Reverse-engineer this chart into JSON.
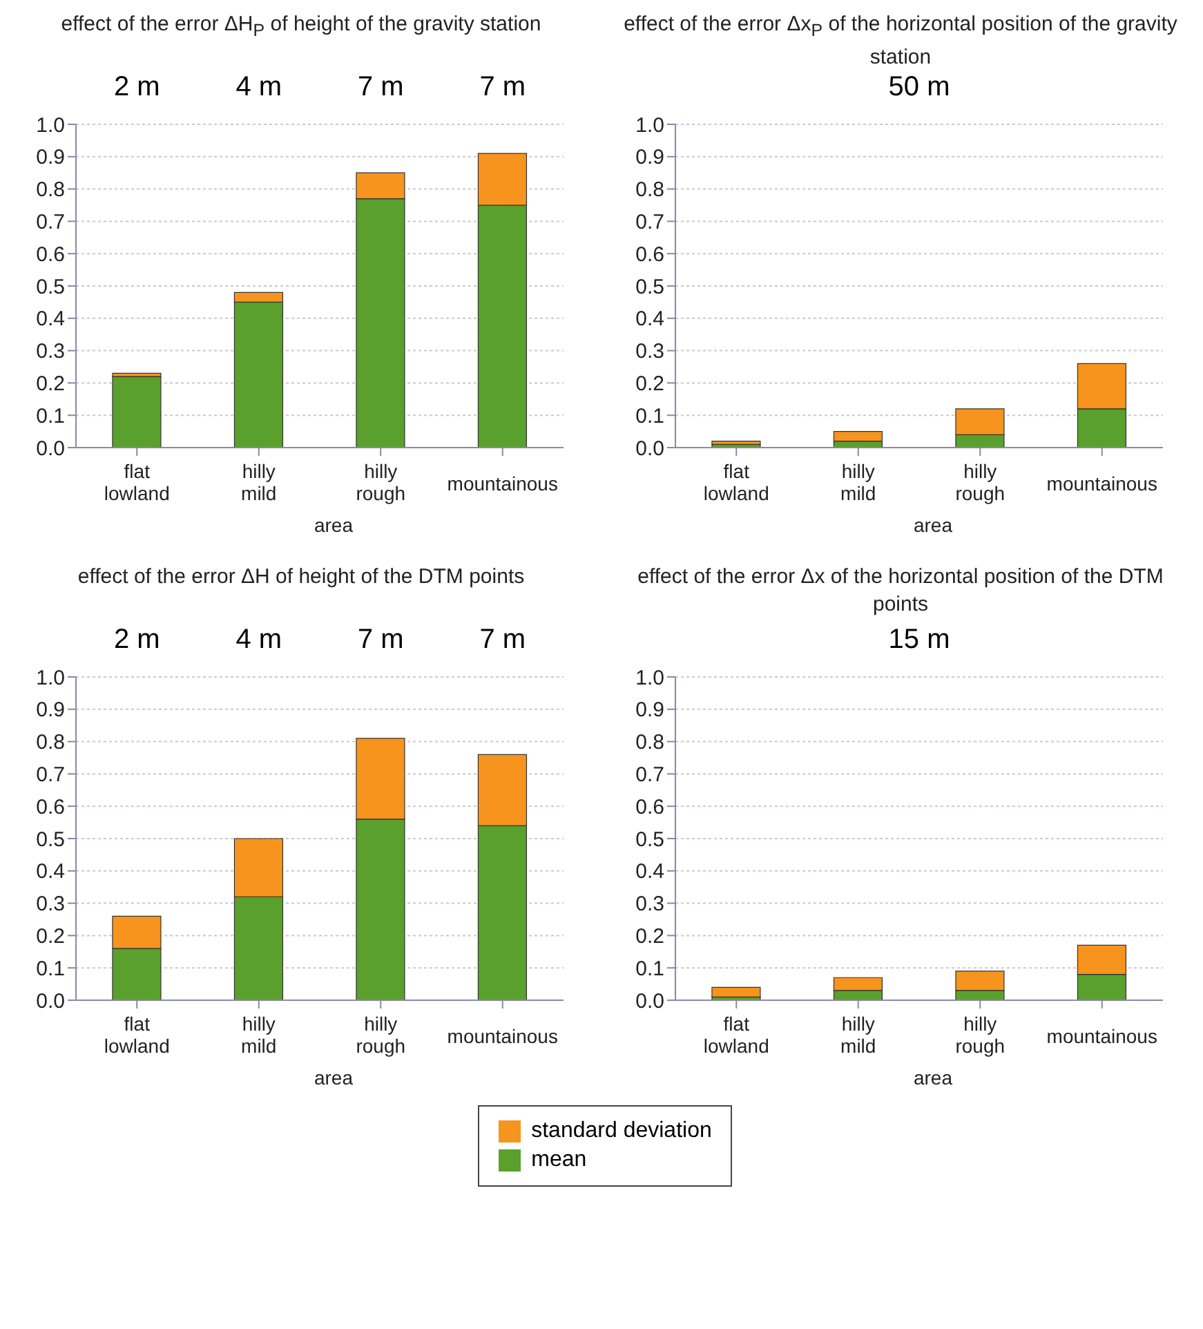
{
  "chart_data": [
    {
      "type": "bar",
      "stacked": true,
      "title": "effect of the error ΔH$_{P}$ of height of the gravity station",
      "xlabel": "area",
      "categories": [
        "flat lowland",
        "hilly mild",
        "hilly rough",
        "mountainous"
      ],
      "annotations": [
        "2 m",
        "4 m",
        "7 m",
        "7 m"
      ],
      "legend": "bottom",
      "series": [
        {
          "name": "mean",
          "color": "#5aa02c",
          "values": [
            0.22,
            0.45,
            0.77,
            0.75
          ]
        },
        {
          "name": "standard deviation",
          "color": "#f7941d",
          "values": [
            0.01,
            0.03,
            0.08,
            0.16
          ]
        }
      ],
      "ylim": [
        0,
        1
      ],
      "yticks": [
        {
          "value": 0,
          "label": "0.0"
        },
        {
          "value": 0.1,
          "label": "0.1"
        },
        {
          "value": 0.2,
          "label": "0.2"
        },
        {
          "value": 0.3,
          "label": "0.3"
        },
        {
          "value": 0.4,
          "label": "0.4"
        },
        {
          "value": 0.5,
          "label": "0.5"
        },
        {
          "value": 0.6,
          "label": "0.6"
        },
        {
          "value": 0.7,
          "label": "0.7"
        },
        {
          "value": 0.8,
          "label": "0.8"
        },
        {
          "value": 0.9,
          "label": "0.9"
        },
        {
          "value": 1,
          "label": "1.0"
        }
      ],
      "grid": "y"
    },
    {
      "type": "bar",
      "stacked": true,
      "title": "effect of the error Δx$_{P}$ of the horizontal position of the gravity station",
      "subtitle": "50 m",
      "xlabel": "area",
      "categories": [
        "flat lowland",
        "hilly mild",
        "hilly rough",
        "mountainous"
      ],
      "series": [
        {
          "color": "#5aa02c",
          "values": [
            0.01,
            0.02,
            0.04,
            0.12
          ]
        },
        {
          "color": "#f7941d",
          "values": [
            0.01,
            0.03,
            0.08,
            0.14
          ]
        }
      ],
      "ylim": [
        0,
        1
      ],
      "yticks": [
        {
          "value": 0,
          "label": "0.0"
        },
        {
          "value": 0.1,
          "label": "0.1"
        },
        {
          "value": 0.2,
          "label": "0.2"
        },
        {
          "value": 0.3,
          "label": "0.3"
        },
        {
          "value": 0.4,
          "label": "0.4"
        },
        {
          "value": 0.5,
          "label": "0.5"
        },
        {
          "value": 0.6,
          "label": "0.6"
        },
        {
          "value": 0.7,
          "label": "0.7"
        },
        {
          "value": 0.8,
          "label": "0.8"
        },
        {
          "value": 0.9,
          "label": "0.9"
        },
        {
          "value": 1,
          "label": "1.0"
        }
      ],
      "grid": "y"
    },
    {
      "type": "bar",
      "stacked": true,
      "title": "effect of the error ΔH of height of the DTM points",
      "xlabel": "area",
      "categories": [
        "flat lowland",
        "hilly mild",
        "hilly rough",
        "mountainous"
      ],
      "annotations": [
        "2 m",
        "4 m",
        "7 m",
        "7 m"
      ],
      "series": [
        {
          "color": "#5aa02c",
          "values": [
            0.16,
            0.32,
            0.56,
            0.54
          ]
        },
        {
          "color": "#f7941d",
          "values": [
            0.1,
            0.18,
            0.25,
            0.22
          ]
        }
      ],
      "ylim": [
        0,
        1
      ],
      "yticks": [
        {
          "value": 0,
          "label": "0.0"
        },
        {
          "value": 0.1,
          "label": "0.1"
        },
        {
          "value": 0.2,
          "label": "0.2"
        },
        {
          "value": 0.3,
          "label": "0.3"
        },
        {
          "value": 0.4,
          "label": "0.4"
        },
        {
          "value": 0.5,
          "label": "0.5"
        },
        {
          "value": 0.6,
          "label": "0.6"
        },
        {
          "value": 0.7,
          "label": "0.7"
        },
        {
          "value": 0.8,
          "label": "0.8"
        },
        {
          "value": 0.9,
          "label": "0.9"
        },
        {
          "value": 1,
          "label": "1.0"
        }
      ],
      "grid": "y"
    },
    {
      "type": "bar",
      "stacked": true,
      "title": "effect of the error Δx of the horizontal position of the DTM points",
      "subtitle": "15 m",
      "xlabel": "area",
      "categories": [
        "flat lowland",
        "hilly mild",
        "hilly rough",
        "mountainous"
      ],
      "series": [
        {
          "color": "#5aa02c",
          "values": [
            0.01,
            0.03,
            0.03,
            0.08
          ]
        },
        {
          "color": "#f7941d",
          "values": [
            0.03,
            0.04,
            0.06,
            0.09
          ]
        }
      ],
      "ylim": [
        0,
        1
      ],
      "yticks": [
        {
          "value": 0,
          "label": "0.0"
        },
        {
          "value": 0.1,
          "label": "0.1"
        },
        {
          "value": 0.2,
          "label": "0.2"
        },
        {
          "value": 0.3,
          "label": "0.3"
        },
        {
          "value": 0.4,
          "label": "0.4"
        },
        {
          "value": 0.5,
          "label": "0.5"
        },
        {
          "value": 0.6,
          "label": "0.6"
        },
        {
          "value": 0.7,
          "label": "0.7"
        },
        {
          "value": 0.8,
          "label": "0.8"
        },
        {
          "value": 0.9,
          "label": "0.9"
        },
        {
          "value": 1,
          "label": "1.0"
        }
      ],
      "grid": "y"
    }
  ]
}
